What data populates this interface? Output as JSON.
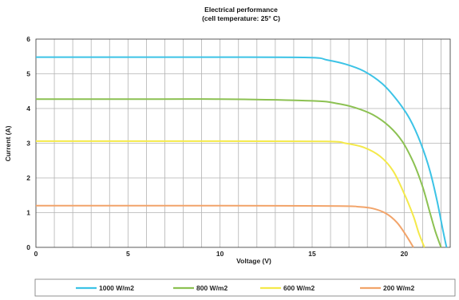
{
  "chart_data": {
    "type": "line",
    "title": "Electrical performance",
    "subtitle": "(cell temperature: 25° C)",
    "xlabel": "Voltage (V)",
    "ylabel": "Current (A)",
    "xlim": [
      0,
      22.5
    ],
    "ylim": [
      0,
      6
    ],
    "xticks": [
      "0",
      "5",
      "10",
      "15",
      "20"
    ],
    "yticks": [
      "0",
      "1",
      "2",
      "3",
      "4",
      "5",
      "6"
    ],
    "grid": true,
    "legend_position": "bottom",
    "series": [
      {
        "name": "1000 W/m2",
        "color": "#3cc3e6",
        "x": [
          0,
          5,
          10,
          14.8,
          15.8,
          16.8,
          17.8,
          18.8,
          19.6,
          20.3,
          20.9,
          21.4,
          21.8,
          22.1,
          22.3
        ],
        "y": [
          5.48,
          5.48,
          5.48,
          5.47,
          5.4,
          5.28,
          5.08,
          4.72,
          4.25,
          3.7,
          3.0,
          2.2,
          1.3,
          0.5,
          0.0
        ]
      },
      {
        "name": "800 W/m2",
        "color": "#8cc152",
        "x": [
          0,
          5,
          10,
          15,
          16.3,
          17.3,
          18.3,
          19.2,
          19.9,
          20.5,
          21.0,
          21.4,
          21.7,
          22.0
        ],
        "y": [
          4.27,
          4.27,
          4.27,
          4.22,
          4.15,
          4.03,
          3.82,
          3.48,
          3.05,
          2.45,
          1.75,
          1.0,
          0.45,
          0.0
        ]
      },
      {
        "name": "600 W/m2",
        "color": "#f4e94a",
        "x": [
          0,
          5,
          10,
          15.8,
          16.8,
          17.8,
          18.7,
          19.4,
          20.0,
          20.5,
          20.8,
          21.1
        ],
        "y": [
          3.06,
          3.06,
          3.06,
          3.05,
          3.0,
          2.88,
          2.62,
          2.2,
          1.55,
          0.9,
          0.4,
          0.0
        ]
      },
      {
        "name": "200 W/m2",
        "color": "#f2a46a",
        "x": [
          0,
          5,
          10,
          16.5,
          17.5,
          18.3,
          19.0,
          19.6,
          20.1,
          20.5
        ],
        "y": [
          1.2,
          1.2,
          1.2,
          1.19,
          1.17,
          1.12,
          0.98,
          0.72,
          0.35,
          0.0
        ]
      }
    ]
  }
}
